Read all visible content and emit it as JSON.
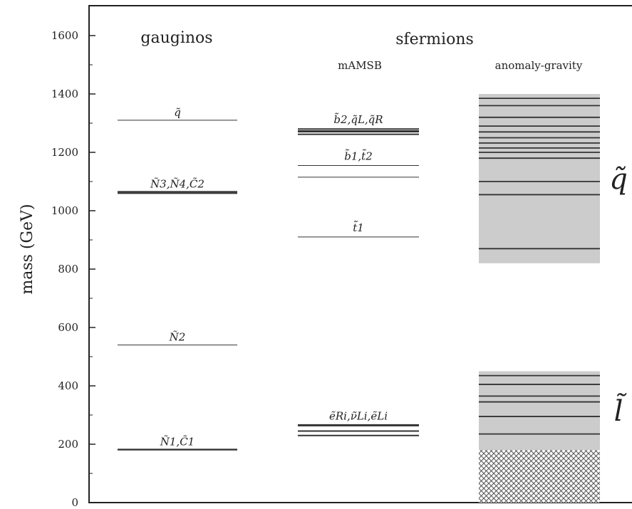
{
  "chart_data": {
    "type": "level-diagram",
    "ylabel": "mass (GeV)",
    "ylim": [
      0,
      1650
    ],
    "yticks": [
      0,
      200,
      400,
      600,
      800,
      1000,
      1200,
      1400,
      1600
    ],
    "yticks_minor": [
      100,
      300,
      500,
      700,
      900,
      1100,
      1300,
      1500
    ],
    "columns": {
      "gauginos": {
        "header": "gauginos",
        "levels": [
          {
            "label": "q̃",
            "mass": 1310,
            "weight": 1
          },
          {
            "label": "Ñ3,Ñ4,C̃2",
            "mass": 1065,
            "weight": 2
          },
          {
            "label": "",
            "mass": 1060,
            "weight": 2
          },
          {
            "label": "Ñ2",
            "mass": 540,
            "weight": 1
          },
          {
            "label": "Ñ1,C̃1",
            "mass": 182,
            "weight": 2
          },
          {
            "label": "",
            "mass": 180,
            "weight": 1
          }
        ]
      },
      "mamsb": {
        "header": "sfermions",
        "subheader": "mAMSB",
        "levels": [
          {
            "label": "b̃2,q̃L,q̃R",
            "mass": 1280,
            "weight": 2
          },
          {
            "label": "",
            "mass": 1272,
            "weight": 3
          },
          {
            "label": "",
            "mass": 1262,
            "weight": 2
          },
          {
            "label": "b̃1,t̃2",
            "mass": 1155,
            "weight": 1
          },
          {
            "label": "",
            "mass": 1115,
            "weight": 1
          },
          {
            "label": "t̃1",
            "mass": 910,
            "weight": 1
          },
          {
            "label": "ẽRi,ν̃Li,ẽLi",
            "mass": 265,
            "weight": 3
          },
          {
            "label": "",
            "mass": 245,
            "weight": 2
          },
          {
            "label": "",
            "mass": 230,
            "weight": 2
          }
        ]
      },
      "anomaly_gravity": {
        "subheader": "anomaly-gravity",
        "bands": [
          {
            "name": "q̃",
            "ymin": 820,
            "ymax": 1400
          },
          {
            "name": "l̃",
            "ymin": 180,
            "ymax": 450
          }
        ],
        "hatch_region": {
          "ymin": 0,
          "ymax": 180
        },
        "levels": [
          1385,
          1360,
          1320,
          1290,
          1270,
          1250,
          1232,
          1215,
          1200,
          1180,
          1100,
          1055,
          870,
          435,
          405,
          365,
          345,
          295,
          235
        ]
      }
    }
  }
}
